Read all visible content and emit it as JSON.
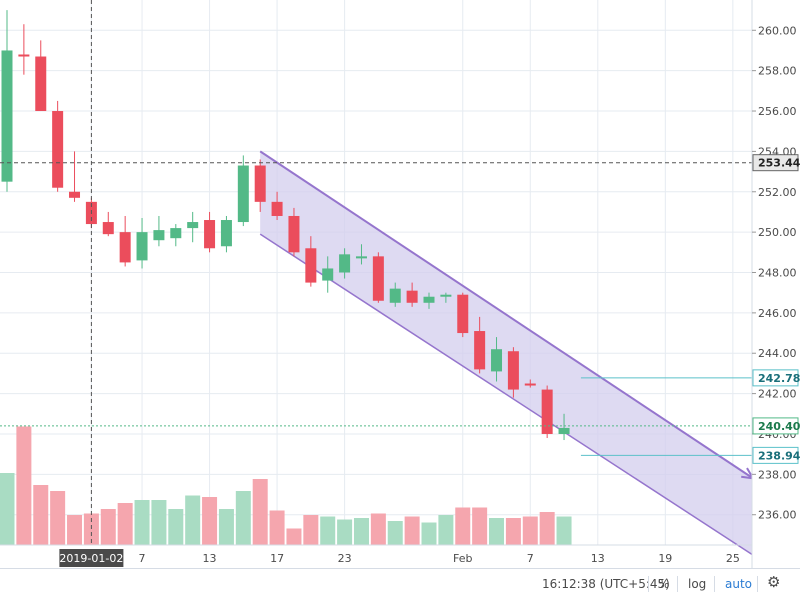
{
  "chart_data": {
    "type": "candlestick",
    "x_tick_labels": [
      "2019-01-02",
      "7",
      "13",
      "17",
      "23",
      "Feb",
      "7",
      "13",
      "19",
      "25"
    ],
    "y_range": [
      234.5,
      261.5
    ],
    "y_ticks": [
      236,
      238,
      240,
      242,
      244,
      246,
      248,
      250,
      252,
      254,
      256,
      258,
      260
    ],
    "y_tick_labels": [
      "236.00",
      "238.00",
      "240.00",
      "242.00",
      "244.00",
      "246.00",
      "248.00",
      "250.00",
      "252.00",
      "254.00",
      "256.00",
      "258.00",
      "260.00"
    ],
    "volume_max": 100,
    "candles": [
      {
        "o": 252.5,
        "h": 261.0,
        "l": 252.0,
        "c": 259.0,
        "v": 48
      },
      {
        "o": 258.8,
        "h": 260.3,
        "l": 257.8,
        "c": 258.7,
        "v": 79
      },
      {
        "o": 258.7,
        "h": 259.5,
        "l": 256.0,
        "c": 256.0,
        "v": 40
      },
      {
        "o": 256.0,
        "h": 256.5,
        "l": 252.0,
        "c": 252.2,
        "v": 36
      },
      {
        "o": 252.0,
        "h": 254.0,
        "l": 251.5,
        "c": 251.7,
        "v": 20
      },
      {
        "o": 251.5,
        "h": 251.7,
        "l": 250.2,
        "c": 250.4,
        "v": 21
      },
      {
        "o": 250.5,
        "h": 251.0,
        "l": 249.8,
        "c": 249.9,
        "v": 24
      },
      {
        "o": 250.0,
        "h": 250.8,
        "l": 248.3,
        "c": 248.5,
        "v": 28
      },
      {
        "o": 248.6,
        "h": 250.7,
        "l": 248.2,
        "c": 250.0,
        "v": 30
      },
      {
        "o": 249.6,
        "h": 250.8,
        "l": 249.3,
        "c": 250.1,
        "v": 30
      },
      {
        "o": 249.7,
        "h": 250.4,
        "l": 249.3,
        "c": 250.2,
        "v": 24
      },
      {
        "o": 250.2,
        "h": 251.0,
        "l": 249.5,
        "c": 250.5,
        "v": 33
      },
      {
        "o": 250.6,
        "h": 251.0,
        "l": 249.0,
        "c": 249.2,
        "v": 32
      },
      {
        "o": 249.3,
        "h": 250.8,
        "l": 249.0,
        "c": 250.6,
        "v": 24
      },
      {
        "o": 250.5,
        "h": 253.8,
        "l": 250.3,
        "c": 253.3,
        "v": 36
      },
      {
        "o": 253.3,
        "h": 253.6,
        "l": 251.0,
        "c": 251.5,
        "v": 44
      },
      {
        "o": 251.5,
        "h": 252.0,
        "l": 250.6,
        "c": 250.8,
        "v": 23
      },
      {
        "o": 250.8,
        "h": 251.2,
        "l": 248.8,
        "c": 249.0,
        "v": 11
      },
      {
        "o": 249.2,
        "h": 249.8,
        "l": 247.3,
        "c": 247.5,
        "v": 20
      },
      {
        "o": 247.6,
        "h": 248.8,
        "l": 247.0,
        "c": 248.2,
        "v": 19
      },
      {
        "o": 248.0,
        "h": 249.2,
        "l": 247.7,
        "c": 248.9,
        "v": 17
      },
      {
        "o": 248.7,
        "h": 249.4,
        "l": 248.4,
        "c": 248.8,
        "v": 18
      },
      {
        "o": 248.8,
        "h": 249.0,
        "l": 246.5,
        "c": 246.6,
        "v": 21
      },
      {
        "o": 246.5,
        "h": 247.5,
        "l": 246.3,
        "c": 247.2,
        "v": 16
      },
      {
        "o": 247.1,
        "h": 247.5,
        "l": 246.3,
        "c": 246.5,
        "v": 19
      },
      {
        "o": 246.5,
        "h": 247.0,
        "l": 246.2,
        "c": 246.8,
        "v": 15
      },
      {
        "o": 246.8,
        "h": 247.0,
        "l": 246.5,
        "c": 246.9,
        "v": 20
      },
      {
        "o": 246.9,
        "h": 247.0,
        "l": 244.8,
        "c": 245.0,
        "v": 25
      },
      {
        "o": 245.1,
        "h": 245.8,
        "l": 243.0,
        "c": 243.2,
        "v": 25
      },
      {
        "o": 243.1,
        "h": 244.8,
        "l": 242.6,
        "c": 244.2,
        "v": 18
      },
      {
        "o": 244.1,
        "h": 244.3,
        "l": 241.8,
        "c": 242.2,
        "v": 18
      },
      {
        "o": 242.5,
        "h": 242.7,
        "l": 242.3,
        "c": 242.4,
        "v": 19
      },
      {
        "o": 242.2,
        "h": 242.4,
        "l": 239.8,
        "c": 240.0,
        "v": 22
      },
      {
        "o": 240.0,
        "h": 241.0,
        "l": 239.7,
        "c": 240.3,
        "v": 19
      }
    ],
    "channel": {
      "upper": [
        {
          "bar": 15,
          "price": 254.0
        },
        {
          "bar": 44.2,
          "price": 237.8
        }
      ],
      "lower": [
        {
          "bar": 15,
          "price": 249.9
        },
        {
          "bar": 44.2,
          "price": 234.0
        }
      ]
    },
    "horizontal_levels": [
      {
        "price": 253.44,
        "label": "253.44",
        "style": "dashed-dark"
      },
      {
        "price": 242.78,
        "label": "242.78",
        "style": "solid-teal"
      },
      {
        "price": 240.4,
        "label": "240.40",
        "style": "dotted-green"
      },
      {
        "price": 238.94,
        "label": "238.94",
        "style": "solid-teal"
      }
    ],
    "crosshair": {
      "bar": 5,
      "price": 253.44
    },
    "colors": {
      "up": "#53b987",
      "down": "#eb4d5c",
      "vol_up": "#a9dcc3",
      "vol_down": "#f5a6ae",
      "channel_fill": "#d3cdee",
      "channel_line": "#9575cd",
      "grid": "#e6ebf1",
      "teal": "#5bc0c9"
    }
  },
  "bottom_bar": {
    "time": "16:12:38 (UTC+5:45)",
    "percent": "%",
    "log": "log",
    "auto": "auto",
    "gear_icon": "gear-icon"
  }
}
